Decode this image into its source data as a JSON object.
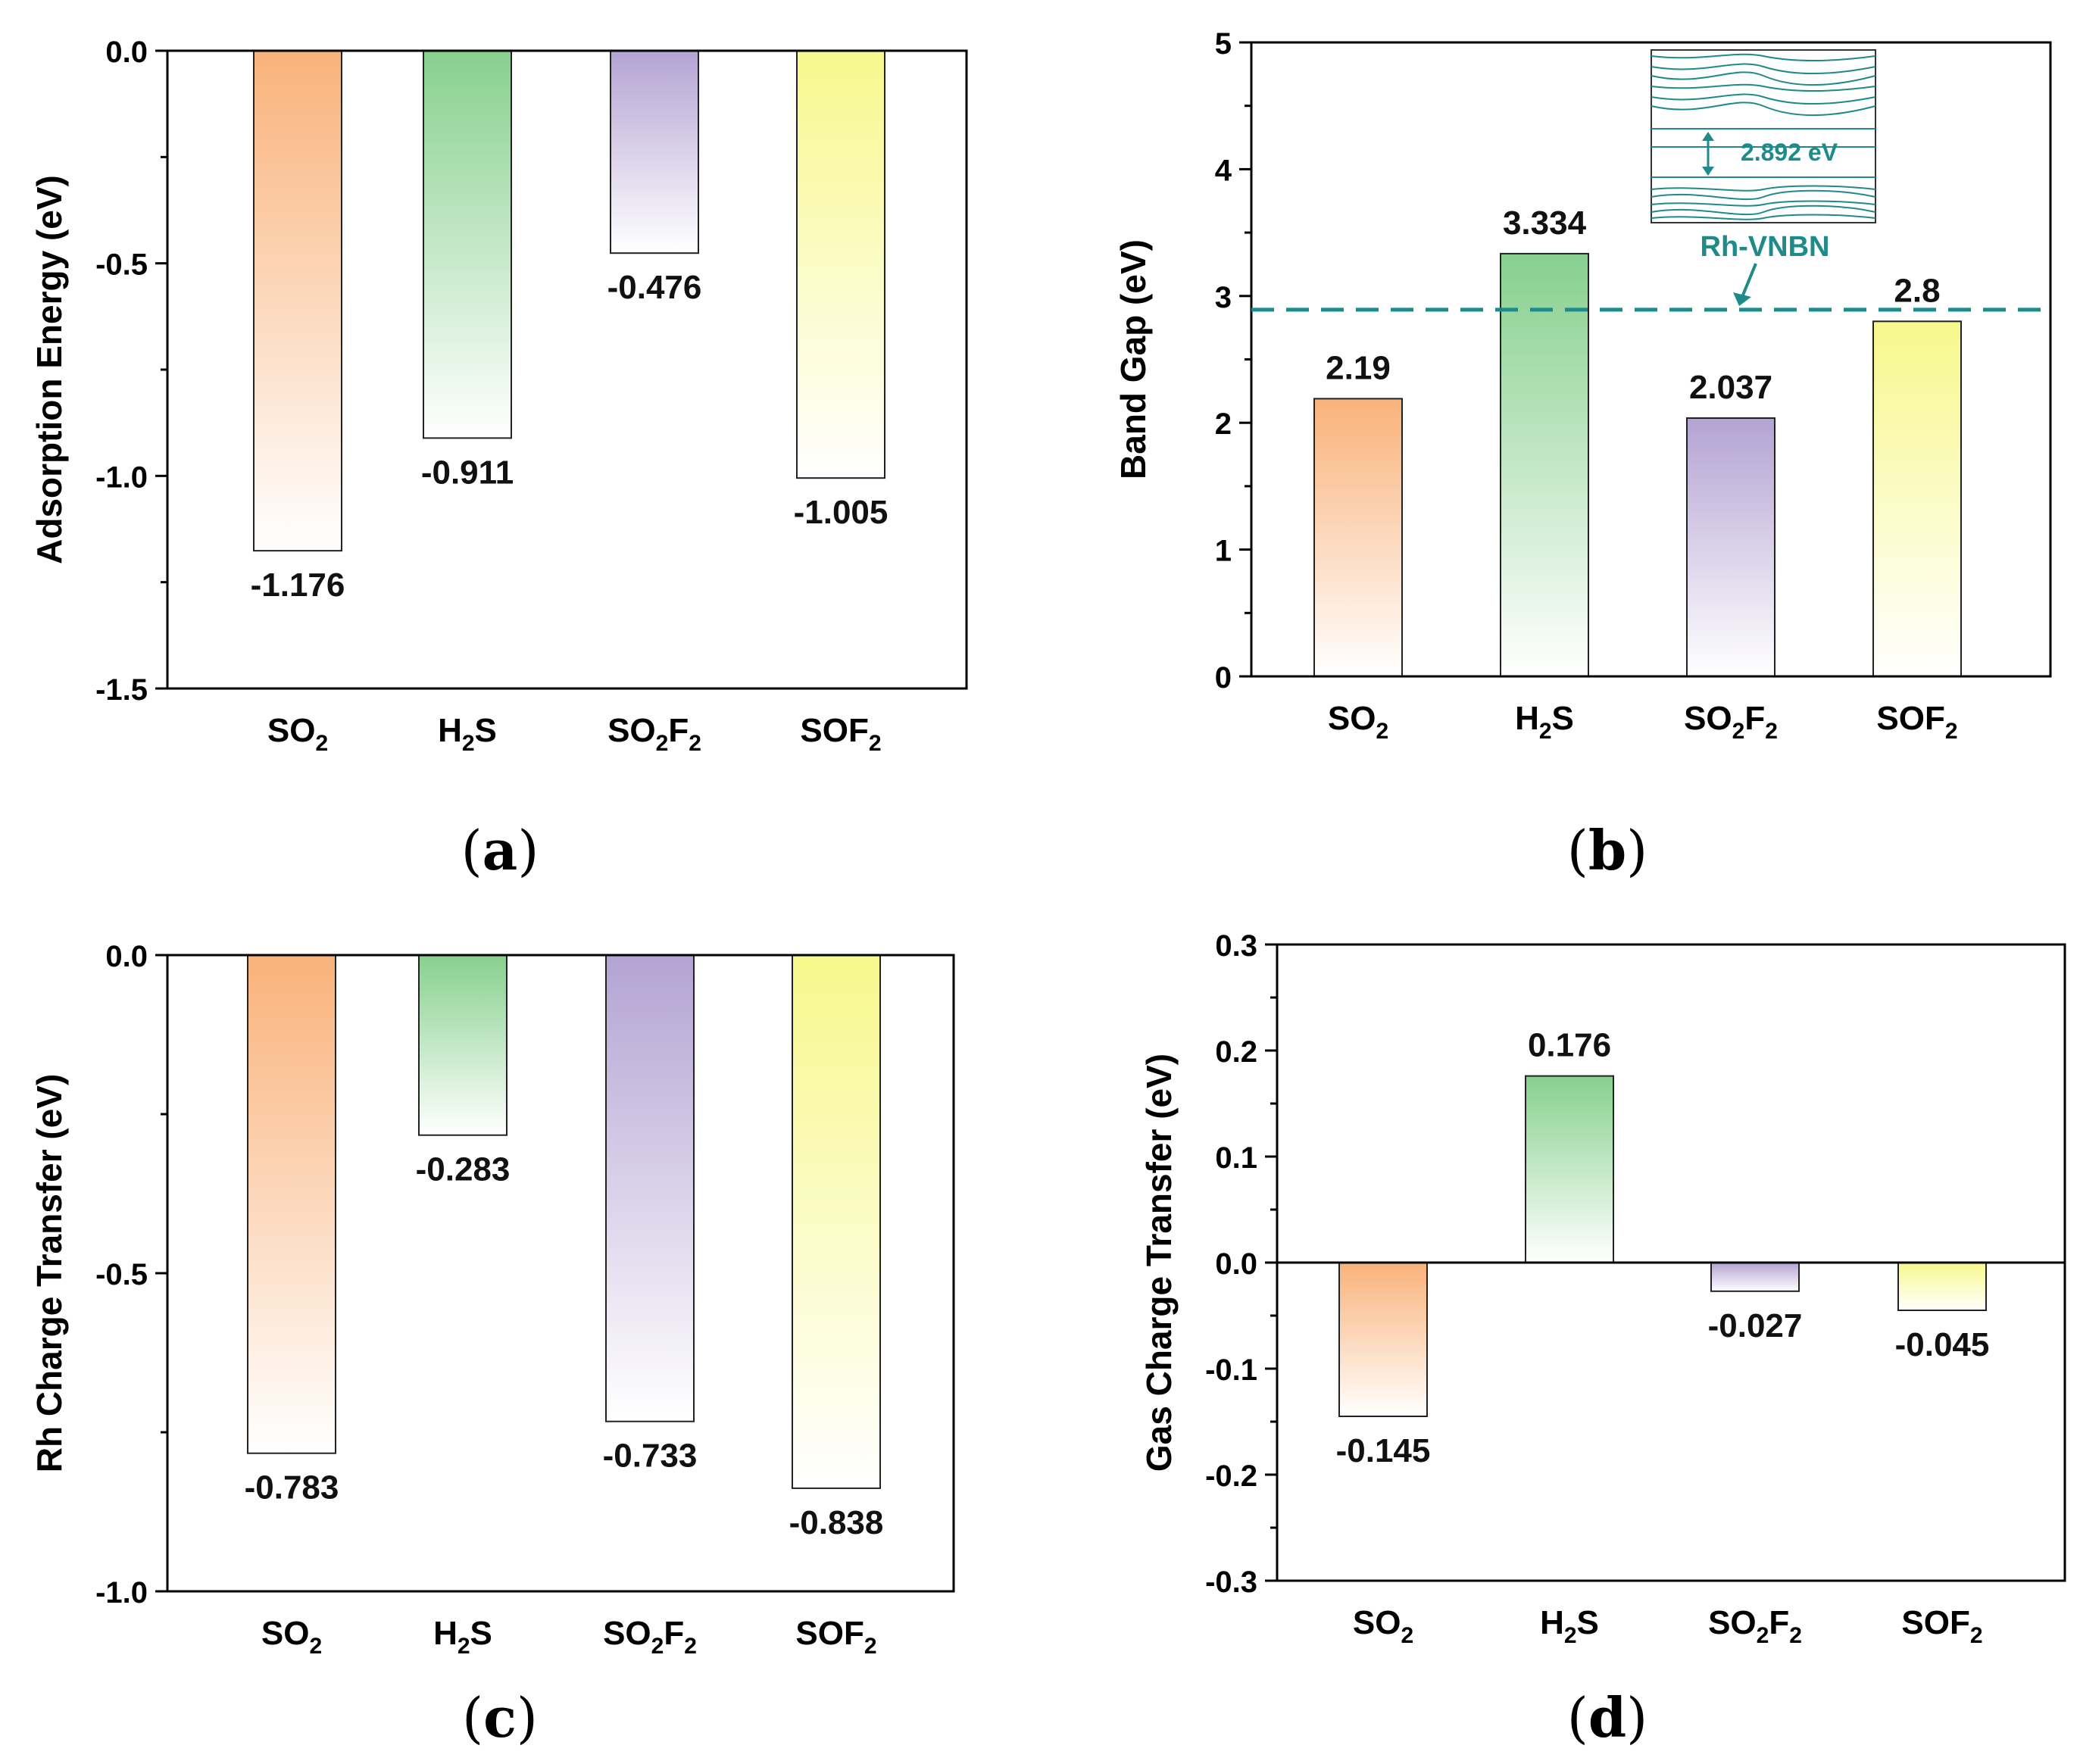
{
  "colors": {
    "SO2": "#f9b27a",
    "H2S": "#87d08e",
    "SO2F2": "#b4a3d3",
    "SOF2": "#f7f88c",
    "reference_line": "#1f8a8a"
  },
  "categories": [
    {
      "main": "SO",
      "sub1": "2",
      "mid": "",
      "sub2": ""
    },
    {
      "main": "H",
      "sub1": "2",
      "mid": "S",
      "sub2": ""
    },
    {
      "main": "SO",
      "sub1": "2",
      "mid": "F",
      "sub2": "2"
    },
    {
      "main": "SOF",
      "sub1": "2",
      "mid": "",
      "sub2": ""
    }
  ],
  "panels": [
    {
      "open": "(",
      "letter": "a",
      "close": ")"
    },
    {
      "open": "(",
      "letter": "b",
      "close": ")"
    },
    {
      "open": "(",
      "letter": "c",
      "close": ")"
    },
    {
      "open": "(",
      "letter": "d",
      "close": ")"
    }
  ],
  "chart_data": [
    {
      "type": "bar",
      "ylabel": "Adsorption Energy (eV)",
      "categories": [
        "SO2",
        "H2S",
        "SO2F2",
        "SOF2"
      ],
      "values": [
        -1.176,
        -0.911,
        -0.476,
        -1.005
      ],
      "data_labels": [
        "-1.176",
        "-0.911",
        "-0.476",
        "-1.005"
      ],
      "ylim": [
        -1.5,
        0.0
      ],
      "yticks": [
        0.0,
        -0.5,
        -1.0,
        -1.5
      ],
      "ytick_labels": [
        "0.0",
        "-0.5",
        "-1.0",
        "-1.5"
      ],
      "grid": false
    },
    {
      "type": "bar",
      "ylabel": "Band Gap (eV)",
      "categories": [
        "SO2",
        "H2S",
        "SO2F2",
        "SOF2"
      ],
      "values": [
        2.19,
        3.334,
        2.037,
        2.8
      ],
      "data_labels": [
        "2.19",
        "3.334",
        "2.037",
        "2.8"
      ],
      "ylim": [
        0,
        5
      ],
      "yticks": [
        0,
        1,
        2,
        3,
        4,
        5
      ],
      "ytick_labels": [
        "0",
        "1",
        "2",
        "3",
        "4",
        "5"
      ],
      "reference_line": {
        "value": 2.892,
        "label": "Rh-VNBN",
        "style": "dashed"
      },
      "inset": {
        "description": "band structure of Rh-VNBN",
        "gap_label": "2.892 eV"
      },
      "grid": false
    },
    {
      "type": "bar",
      "ylabel": "Rh Charge Transfer (eV)",
      "categories": [
        "SO2",
        "H2S",
        "SO2F2",
        "SOF2"
      ],
      "values": [
        -0.783,
        -0.283,
        -0.733,
        -0.838
      ],
      "data_labels": [
        "-0.783",
        "-0.283",
        "-0.733",
        "-0.838"
      ],
      "ylim": [
        -1.0,
        0.0
      ],
      "yticks": [
        0.0,
        -0.5,
        -1.0
      ],
      "ytick_labels": [
        "0.0",
        "-0.5",
        "-1.0"
      ],
      "grid": false
    },
    {
      "type": "bar",
      "ylabel": "Gas Charge Transfer (eV)",
      "categories": [
        "SO2",
        "H2S",
        "SO2F2",
        "SOF2"
      ],
      "values": [
        -0.145,
        0.176,
        -0.027,
        -0.045
      ],
      "data_labels": [
        "-0.145",
        "0.176",
        "-0.027",
        "-0.045"
      ],
      "ylim": [
        -0.3,
        0.3
      ],
      "yticks": [
        0.3,
        0.2,
        0.1,
        0.0,
        -0.1,
        -0.2,
        -0.3
      ],
      "ytick_labels": [
        "0.3",
        "0.2",
        "0.1",
        "0.0",
        "-0.1",
        "-0.2",
        "-0.3"
      ],
      "zero_line": true,
      "grid": false
    }
  ]
}
